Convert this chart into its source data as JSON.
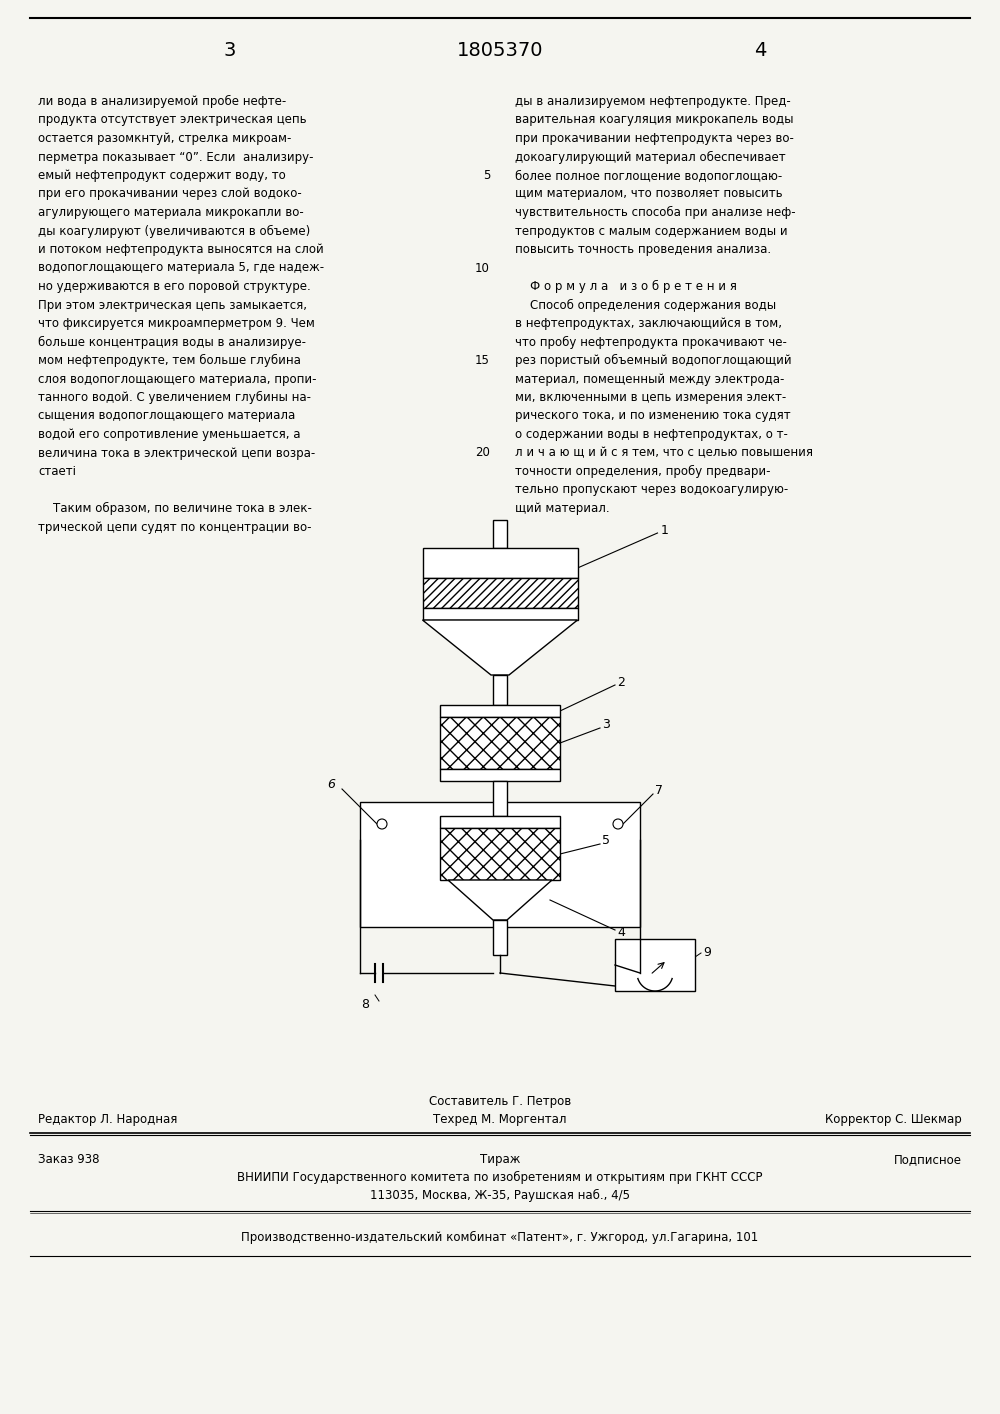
{
  "page_number_left": "3",
  "page_number_center": "1805370",
  "page_number_right": "4",
  "bg_color": "#f5f5f0",
  "text_color": "#000000",
  "left_col_lines": [
    "ли вода в анализируемой пробе нефте-",
    "продукта отсутствует электрическая цепь",
    "остается разомкнтуй, стрелка микроам-",
    "перметра показывает “0”. Если  анализиру-",
    "емый нефтепродукт содержит воду, то",
    "при его прокачивании через слой водоко-",
    "агулирующего материала микрокапли во-",
    "ды коагулируют (увеличиваются в объеме)",
    "и потоком нефтепродукта выносятся на слой",
    "водопоглощающего материала 5, где надеж-",
    "но удерживаются в его поровой структуре.",
    "При этом электрическая цепь замыкается,",
    "что фиксируется микроамперметром 9. Чем",
    "больше концентрация воды в анализируе-",
    "мом нефтепродукте, тем больше глубина",
    "слоя водопоглощающего материала, пропи-",
    "танного водой. С увеличением глубины на-",
    "сыщения водопоглощающего материала",
    "водой его сопротивление уменьшается, а",
    "величина тока в электрической цепи возра-",
    "стаеті",
    "",
    "    Таким образом, по величине тока в элек-",
    "трической цепи судят по концентрации во-"
  ],
  "right_col_lines": [
    "ды в анализируемом нефтепродукте. Пред-",
    "варительная коагуляция микрокапель воды",
    "при прокачивании нефтепродукта через во-",
    "докоагулирующий материал обеспечивает",
    "более полное поглощение водопоглощаю-",
    "щим материалом, что позволяет повысить",
    "чувствительность способа при анализе неф-",
    "тепродуктов с малым содержанием воды и",
    "повысить точность проведения анализа.",
    "",
    "    Ф о р м у л а   и з о б р е т е н и я",
    "    Способ определения содержания воды",
    "в нефтепродуктах, заключающийся в том,",
    "что пробу нефтепродукта прокачивают че-",
    "рез пористый объемный водопоглощающий",
    "материал, помещенный между электрода-",
    "ми, включенными в цепь измерения элект-",
    "рического тока, и по изменению тока судят",
    "о содержании воды в нефтепродуктах, о т-",
    "л и ч а ю щ и й с я тем, что с целью повышения",
    "точности определения, пробу предвари-",
    "тельно пропускают через водокоагулирую-",
    "щий материал."
  ],
  "line_num_rows": [
    4,
    9,
    14,
    19
  ],
  "line_num_values": [
    "5",
    "10",
    "15",
    "20"
  ],
  "footer_editor": "Редактор Л. Народная",
  "footer_compiler": "Составитель Г. Петров",
  "footer_techred": "Техред М. Моргентал",
  "footer_corrector": "Корректор С. Шекмар",
  "footer_order": "Заказ 938",
  "footer_tirazh": "Тираж",
  "footer_podpisnoe": "Подписное",
  "footer_vniipii": "ВНИИПИ Государственного комитета по изобретениям и открытиям при ГКНТ СССР",
  "footer_address": "113035, Москва, Ж-35, Раушская наб., 4/5",
  "footer_patent": "Производственно-издательский комбинат «Патент», г. Ужгород, ул.Гагарина, 101"
}
